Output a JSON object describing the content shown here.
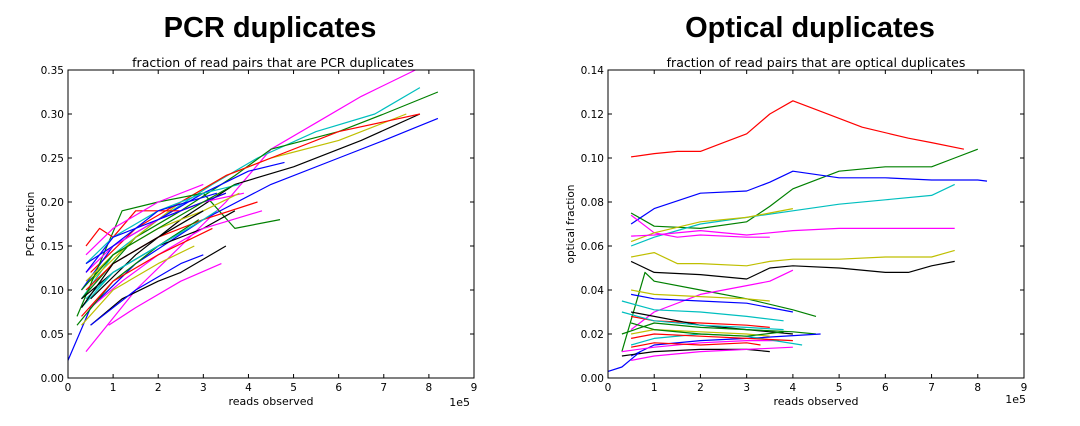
{
  "chart_data": [
    {
      "type": "line",
      "heading": "PCR duplicates",
      "title": "fraction of read pairs that are PCR duplicates",
      "xlabel": "reads observed",
      "ylabel": "PCR fraction",
      "x_multiplier_label": "1e5",
      "xlim": [
        0,
        9
      ],
      "ylim": [
        0,
        0.35
      ],
      "xticks": [
        "0",
        "1",
        "2",
        "3",
        "4",
        "5",
        "6",
        "7",
        "8",
        "9"
      ],
      "yticks": [
        "0.00",
        "0.05",
        "0.10",
        "0.15",
        "0.20",
        "0.25",
        "0.30",
        "0.35"
      ],
      "series": [
        {
          "color": "#ff00ff",
          "x": [
            0.4,
            1.5,
            2.5,
            3.5,
            4.5,
            5.5,
            6.5,
            7.7
          ],
          "y": [
            0.03,
            0.1,
            0.15,
            0.2,
            0.26,
            0.29,
            0.32,
            0.35
          ]
        },
        {
          "color": "#0000ff",
          "x": [
            0.0,
            0.5,
            1.5,
            3.0,
            4.5,
            6.0,
            7.0,
            8.2
          ],
          "y": [
            0.02,
            0.08,
            0.13,
            0.18,
            0.22,
            0.25,
            0.27,
            0.295
          ]
        },
        {
          "color": "#00bfbf",
          "x": [
            0.3,
            1.0,
            2.0,
            3.2,
            4.2,
            5.5,
            6.8,
            7.8
          ],
          "y": [
            0.09,
            0.14,
            0.18,
            0.22,
            0.25,
            0.28,
            0.3,
            0.33
          ]
        },
        {
          "color": "#008000",
          "x": [
            0.3,
            1.5,
            2.5,
            3.7,
            4.5,
            6.0,
            7.0,
            8.2
          ],
          "y": [
            0.09,
            0.16,
            0.19,
            0.23,
            0.26,
            0.28,
            0.3,
            0.325
          ]
        },
        {
          "color": "#bfbf00",
          "x": [
            0.5,
            1.5,
            2.5,
            3.5,
            4.5,
            6.0,
            7.5
          ],
          "y": [
            0.11,
            0.16,
            0.2,
            0.23,
            0.25,
            0.27,
            0.3
          ]
        },
        {
          "color": "#000000",
          "x": [
            0.5,
            1.5,
            2.5,
            3.7,
            5.0,
            6.5,
            7.8
          ],
          "y": [
            0.09,
            0.14,
            0.18,
            0.22,
            0.24,
            0.27,
            0.3
          ]
        },
        {
          "color": "#ff0000",
          "x": [
            0.5,
            1.5,
            2.5,
            3.5,
            4.5,
            6.0,
            7.8
          ],
          "y": [
            0.12,
            0.17,
            0.2,
            0.23,
            0.25,
            0.28,
            0.3
          ]
        },
        {
          "color": "#0000ff",
          "x": [
            0.3,
            1.0,
            2.0,
            3.0,
            4.0,
            4.8
          ],
          "y": [
            0.1,
            0.15,
            0.18,
            0.21,
            0.235,
            0.245
          ]
        },
        {
          "color": "#008000",
          "x": [
            0.2,
            1.2,
            2.0,
            3.0,
            3.7,
            4.7
          ],
          "y": [
            0.07,
            0.19,
            0.2,
            0.21,
            0.17,
            0.18
          ]
        },
        {
          "color": "#ff0000",
          "x": [
            0.4,
            0.7,
            1.0,
            1.5,
            2.5,
            3.5
          ],
          "y": [
            0.15,
            0.17,
            0.16,
            0.19,
            0.19,
            0.21
          ]
        },
        {
          "color": "#00bfbf",
          "x": [
            0.4,
            1.0,
            2.0,
            3.0,
            3.8
          ],
          "y": [
            0.13,
            0.16,
            0.19,
            0.21,
            0.22
          ]
        },
        {
          "color": "#ff00ff",
          "x": [
            0.4,
            1.0,
            2.0,
            3.0,
            3.9
          ],
          "y": [
            0.12,
            0.15,
            0.18,
            0.2,
            0.21
          ]
        },
        {
          "color": "#bfbf00",
          "x": [
            0.4,
            1.0,
            2.0,
            3.0,
            3.8
          ],
          "y": [
            0.11,
            0.14,
            0.17,
            0.19,
            0.21
          ]
        },
        {
          "color": "#000000",
          "x": [
            0.3,
            1.0,
            2.0,
            3.0,
            3.7
          ],
          "y": [
            0.09,
            0.12,
            0.15,
            0.17,
            0.19
          ]
        },
        {
          "color": "#0000ff",
          "x": [
            0.4,
            1.0,
            2.0,
            3.0,
            3.5
          ],
          "y": [
            0.12,
            0.16,
            0.18,
            0.2,
            0.21
          ]
        },
        {
          "color": "#008000",
          "x": [
            0.3,
            1.0,
            2.0,
            3.0,
            3.7
          ],
          "y": [
            0.1,
            0.14,
            0.17,
            0.2,
            0.22
          ]
        },
        {
          "color": "#ff0000",
          "x": [
            0.4,
            1.0,
            2.0,
            3.0,
            4.2
          ],
          "y": [
            0.1,
            0.13,
            0.16,
            0.18,
            0.2
          ]
        },
        {
          "color": "#00bfbf",
          "x": [
            0.3,
            1.0,
            2.0,
            3.0,
            3.3
          ],
          "y": [
            0.08,
            0.12,
            0.15,
            0.18,
            0.19
          ]
        },
        {
          "color": "#ff00ff",
          "x": [
            0.5,
            1.2,
            2.0,
            3.0,
            4.3
          ],
          "y": [
            0.08,
            0.11,
            0.14,
            0.17,
            0.19
          ]
        },
        {
          "color": "#bfbf00",
          "x": [
            0.3,
            1.0,
            2.0,
            2.8
          ],
          "y": [
            0.06,
            0.1,
            0.13,
            0.15
          ]
        },
        {
          "color": "#000000",
          "x": [
            0.5,
            1.2,
            2.0,
            2.5,
            3.5
          ],
          "y": [
            0.06,
            0.09,
            0.11,
            0.12,
            0.15
          ]
        },
        {
          "color": "#0000ff",
          "x": [
            0.5,
            1.5,
            2.5,
            3.0
          ],
          "y": [
            0.06,
            0.1,
            0.13,
            0.14
          ]
        },
        {
          "color": "#ff00ff",
          "x": [
            0.9,
            1.5,
            2.5,
            3.4
          ],
          "y": [
            0.06,
            0.08,
            0.11,
            0.13
          ]
        },
        {
          "color": "#008000",
          "x": [
            0.2,
            1.0,
            2.0,
            2.9
          ],
          "y": [
            0.06,
            0.11,
            0.15,
            0.18
          ]
        },
        {
          "color": "#ff0000",
          "x": [
            0.3,
            1.0,
            2.0,
            3.2
          ],
          "y": [
            0.07,
            0.11,
            0.14,
            0.17
          ]
        },
        {
          "color": "#00bfbf",
          "x": [
            0.4,
            1.0,
            2.0,
            3.0
          ],
          "y": [
            0.09,
            0.12,
            0.15,
            0.18
          ]
        },
        {
          "color": "#000000",
          "x": [
            0.3,
            1.0,
            2.0,
            3.0
          ],
          "y": [
            0.08,
            0.13,
            0.16,
            0.19
          ]
        },
        {
          "color": "#0000ff",
          "x": [
            0.4,
            1.0,
            2.0,
            3.3
          ],
          "y": [
            0.13,
            0.15,
            0.19,
            0.21
          ]
        },
        {
          "color": "#ff00ff",
          "x": [
            0.4,
            1.0,
            2.0,
            3.0
          ],
          "y": [
            0.14,
            0.17,
            0.2,
            0.22
          ]
        }
      ]
    },
    {
      "type": "line",
      "heading": "Optical duplicates",
      "title": "fraction of read pairs that are optical duplicates",
      "xlabel": "reads observed",
      "ylabel": "optical fraction",
      "x_multiplier_label": "1e5",
      "xlim": [
        0,
        9
      ],
      "ylim": [
        0,
        0.14
      ],
      "xticks": [
        "0",
        "1",
        "2",
        "3",
        "4",
        "5",
        "6",
        "7",
        "8",
        "9"
      ],
      "yticks": [
        "0.00",
        "0.02",
        "0.04",
        "0.06",
        "0.08",
        "0.10",
        "0.12",
        "0.14"
      ],
      "series": [
        {
          "color": "#ff0000",
          "x": [
            0.5,
            1.0,
            1.5,
            2.0,
            2.5,
            3.0,
            3.5,
            4.0,
            4.5,
            5.5,
            6.5,
            7.0,
            7.7
          ],
          "y": [
            0.1005,
            0.102,
            0.103,
            0.103,
            0.107,
            0.111,
            0.12,
            0.126,
            0.122,
            0.114,
            0.109,
            0.107,
            0.104
          ]
        },
        {
          "color": "#008000",
          "x": [
            0.5,
            1.0,
            2.0,
            3.0,
            3.5,
            4.0,
            5.0,
            6.0,
            7.0,
            7.5,
            8.0
          ],
          "y": [
            0.075,
            0.069,
            0.068,
            0.071,
            0.078,
            0.086,
            0.094,
            0.096,
            0.096,
            0.1,
            0.104
          ]
        },
        {
          "color": "#0000ff",
          "x": [
            0.5,
            1.0,
            2.0,
            3.0,
            3.5,
            4.0,
            5.0,
            6.0,
            7.0,
            8.0,
            8.2
          ],
          "y": [
            0.07,
            0.077,
            0.084,
            0.085,
            0.089,
            0.094,
            0.091,
            0.091,
            0.09,
            0.09,
            0.0895
          ]
        },
        {
          "color": "#00bfbf",
          "x": [
            0.5,
            1.0,
            2.0,
            3.0,
            4.0,
            5.0,
            6.0,
            7.0,
            7.5
          ],
          "y": [
            0.06,
            0.064,
            0.07,
            0.073,
            0.076,
            0.079,
            0.081,
            0.083,
            0.088
          ]
        },
        {
          "color": "#ff00ff",
          "x": [
            0.5,
            1.0,
            1.5,
            2.0,
            3.0,
            3.5
          ],
          "y": [
            0.074,
            0.066,
            0.064,
            0.065,
            0.064,
            0.064
          ]
        },
        {
          "color": "#bfbf00",
          "x": [
            0.5,
            1.0,
            2.0,
            3.0,
            3.5,
            4.0
          ],
          "y": [
            0.062,
            0.066,
            0.071,
            0.073,
            0.075,
            0.077
          ]
        },
        {
          "color": "#ff00ff",
          "x": [
            0.5,
            1.0,
            2.0,
            3.0,
            4.0,
            5.0,
            6.0,
            7.0,
            7.5
          ],
          "y": [
            0.0645,
            0.065,
            0.067,
            0.065,
            0.067,
            0.068,
            0.068,
            0.068,
            0.068
          ]
        },
        {
          "color": "#bfbf00",
          "x": [
            0.5,
            1.0,
            1.5,
            2.0,
            3.0,
            3.5,
            4.0,
            5.0,
            6.0,
            7.0,
            7.5
          ],
          "y": [
            0.055,
            0.057,
            0.052,
            0.052,
            0.051,
            0.053,
            0.054,
            0.054,
            0.055,
            0.055,
            0.058
          ]
        },
        {
          "color": "#000000",
          "x": [
            0.5,
            1.0,
            2.0,
            3.0,
            3.5,
            4.0,
            5.0,
            6.0,
            6.5,
            7.0,
            7.5
          ],
          "y": [
            0.053,
            0.048,
            0.047,
            0.045,
            0.05,
            0.051,
            0.05,
            0.048,
            0.048,
            0.051,
            0.053
          ]
        },
        {
          "color": "#008000",
          "x": [
            0.3,
            0.8,
            1.0,
            2.0,
            3.0,
            4.0,
            4.5
          ],
          "y": [
            0.012,
            0.048,
            0.044,
            0.04,
            0.036,
            0.031,
            0.028
          ]
        },
        {
          "color": "#ff00ff",
          "x": [
            0.5,
            1.0,
            2.0,
            3.0,
            3.5,
            4.0
          ],
          "y": [
            0.022,
            0.03,
            0.038,
            0.042,
            0.044,
            0.049
          ]
        },
        {
          "color": "#0000ff",
          "x": [
            0.5,
            1.0,
            2.0,
            3.0,
            4.0
          ],
          "y": [
            0.038,
            0.036,
            0.035,
            0.034,
            0.03
          ]
        },
        {
          "color": "#bfbf00",
          "x": [
            0.5,
            1.0,
            2.0,
            3.0,
            3.5
          ],
          "y": [
            0.04,
            0.038,
            0.037,
            0.036,
            0.035
          ]
        },
        {
          "color": "#00bfbf",
          "x": [
            0.3,
            1.0,
            2.0,
            3.0,
            3.8
          ],
          "y": [
            0.035,
            0.031,
            0.03,
            0.028,
            0.026
          ]
        },
        {
          "color": "#ff0000",
          "x": [
            0.5,
            1.0,
            2.0,
            3.0,
            3.5
          ],
          "y": [
            0.028,
            0.026,
            0.025,
            0.024,
            0.023
          ]
        },
        {
          "color": "#000000",
          "x": [
            0.5,
            1.0,
            2.0,
            3.0,
            4.0
          ],
          "y": [
            0.03,
            0.028,
            0.024,
            0.022,
            0.02
          ]
        },
        {
          "color": "#008000",
          "x": [
            0.3,
            1.0,
            2.0,
            3.0,
            4.0,
            4.5
          ],
          "y": [
            0.02,
            0.025,
            0.023,
            0.022,
            0.021,
            0.02
          ]
        },
        {
          "color": "#0000ff",
          "x": [
            0.5,
            1.0,
            2.0,
            3.0,
            4.6
          ],
          "y": [
            0.01,
            0.015,
            0.017,
            0.018,
            0.02
          ]
        },
        {
          "color": "#ff00ff",
          "x": [
            0.3,
            1.0,
            2.0,
            3.0,
            3.7
          ],
          "y": [
            0.012,
            0.014,
            0.016,
            0.017,
            0.017
          ]
        },
        {
          "color": "#00bfbf",
          "x": [
            0.5,
            1.0,
            2.0,
            3.0,
            4.2
          ],
          "y": [
            0.015,
            0.018,
            0.02,
            0.019,
            0.015
          ]
        },
        {
          "color": "#bfbf00",
          "x": [
            0.5,
            1.0,
            2.0,
            3.0,
            3.5
          ],
          "y": [
            0.02,
            0.022,
            0.021,
            0.02,
            0.019
          ]
        },
        {
          "color": "#ff0000",
          "x": [
            0.5,
            1.0,
            2.0,
            3.0,
            4.0
          ],
          "y": [
            0.018,
            0.02,
            0.019,
            0.018,
            0.017
          ]
        },
        {
          "color": "#000000",
          "x": [
            0.3,
            1.0,
            2.0,
            3.0,
            3.5
          ],
          "y": [
            0.01,
            0.012,
            0.013,
            0.013,
            0.012
          ]
        },
        {
          "color": "#0000ff",
          "x": [
            0.0,
            0.3,
            0.7
          ],
          "y": [
            0.003,
            0.005,
            0.012
          ]
        },
        {
          "color": "#ff00ff",
          "x": [
            0.5,
            1.0,
            2.0,
            3.0,
            4.0
          ],
          "y": [
            0.008,
            0.01,
            0.012,
            0.013,
            0.014
          ]
        },
        {
          "color": "#008000",
          "x": [
            0.5,
            1.0,
            2.0,
            3.0,
            3.8
          ],
          "y": [
            0.025,
            0.022,
            0.02,
            0.019,
            0.021
          ]
        },
        {
          "color": "#00bfbf",
          "x": [
            0.3,
            1.0,
            2.0,
            3.0,
            3.8
          ],
          "y": [
            0.03,
            0.026,
            0.024,
            0.023,
            0.022
          ]
        },
        {
          "color": "#ff0000",
          "x": [
            0.5,
            1.0,
            2.0,
            3.0,
            3.3
          ],
          "y": [
            0.014,
            0.016,
            0.015,
            0.016,
            0.015
          ]
        }
      ]
    }
  ]
}
